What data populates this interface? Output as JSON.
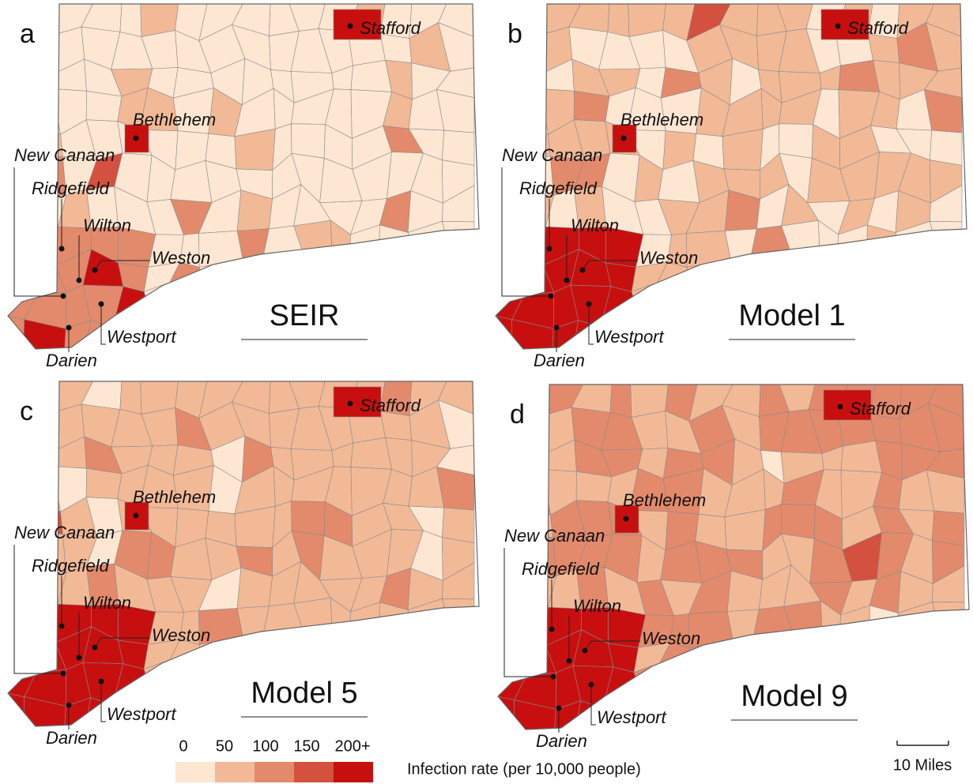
{
  "panels": [
    {
      "letter": "a",
      "model": "SEIR"
    },
    {
      "letter": "b",
      "model": "Model 1"
    },
    {
      "letter": "c",
      "model": "Model 5"
    },
    {
      "letter": "d",
      "model": "Model 9"
    }
  ],
  "towns": [
    "Stafford",
    "Bethlehem",
    "New Canaan",
    "Ridgefield",
    "Wilton",
    "Weston",
    "Westport",
    "Darien"
  ],
  "legend": {
    "labels": [
      "0",
      "50",
      "100",
      "150",
      "200+"
    ],
    "colors": [
      "#fde6d2",
      "#f2b997",
      "#e38a6c",
      "#d4513f",
      "#c80f0f"
    ],
    "title": "Infection rate (per 10,000 people)"
  },
  "scale_bar": "10 Miles"
}
